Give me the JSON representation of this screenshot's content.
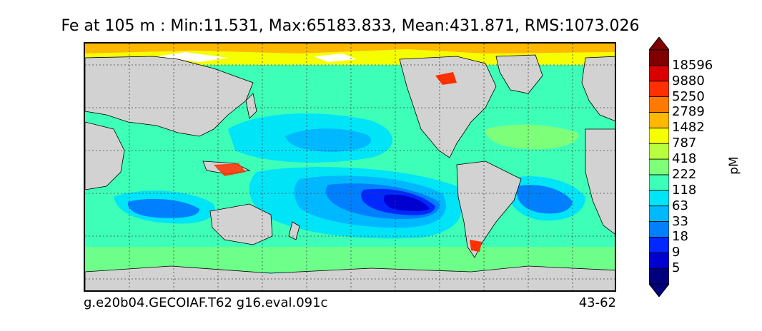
{
  "title": "Fe at 105 m : Min:11.531, Max:65183.833, Mean:431.871, RMS:1073.026",
  "footer": {
    "case_name": "g.e20b04.GECOIAF.T62 g16.eval.091c",
    "year_range": "43-62"
  },
  "colorbar": {
    "units": "pM",
    "levels": [
      "5",
      "9",
      "18",
      "33",
      "63",
      "118",
      "222",
      "418",
      "787",
      "1482",
      "2789",
      "5250",
      "9880",
      "18596"
    ],
    "colors": [
      "#00007f",
      "#0000d0",
      "#0028ff",
      "#0080ff",
      "#00b8ff",
      "#00e4f8",
      "#3dffb8",
      "#7dff7a",
      "#b8ff3f",
      "#f5ff00",
      "#ffb800",
      "#ff7a00",
      "#ff3000",
      "#d80000",
      "#800000"
    ],
    "land_color": "#d2d2d2",
    "extend": "both"
  },
  "map": {
    "projection": "cylindrical",
    "graticule": "dotted",
    "variable": "Fe",
    "depth": "105 m"
  }
}
